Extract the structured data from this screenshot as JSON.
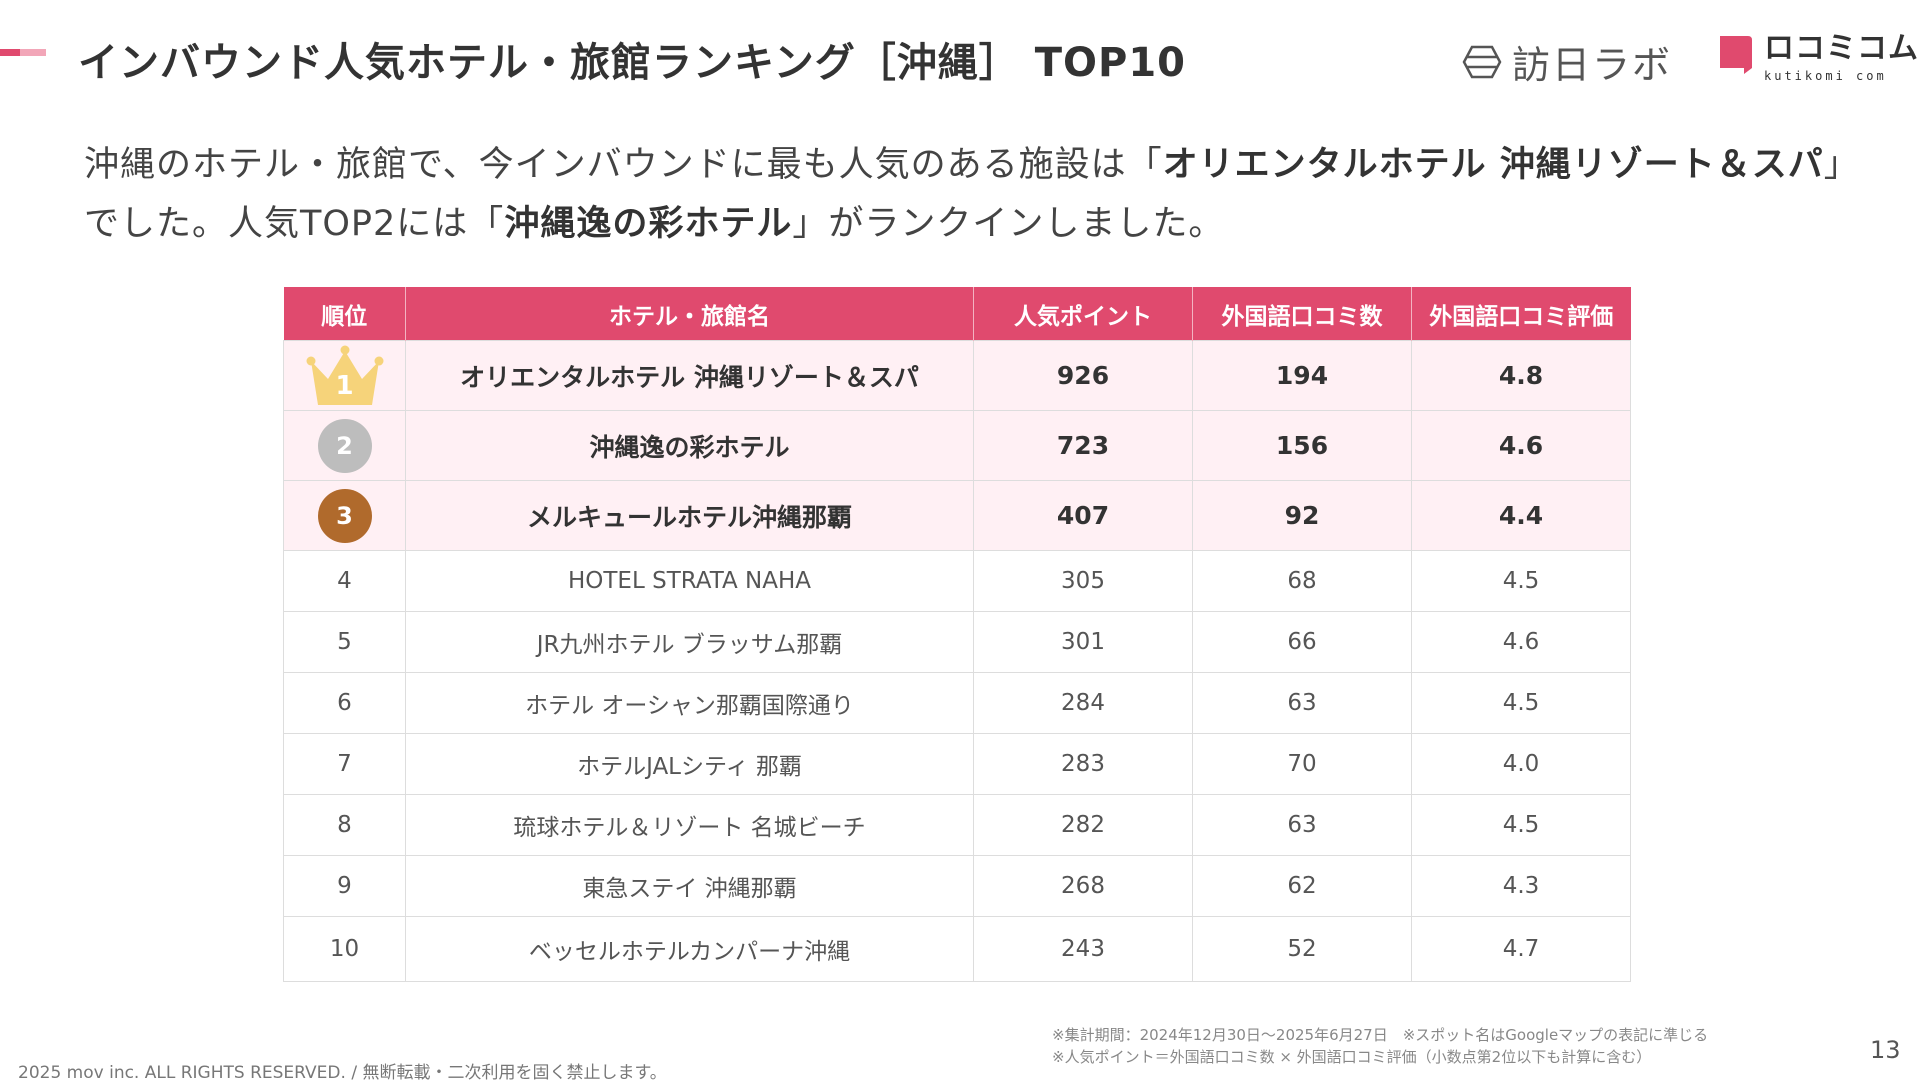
{
  "header": {
    "title": "インバウンド人気ホテル・旅館ランキング［沖縄］ TOP10",
    "logo_houmon": "訪日ラボ",
    "logo_kuchikomi_jp": "ロコミコム",
    "logo_kuchikomi_en": "kutikomi com",
    "accent_colors": [
      "#e04a6e",
      "#f2a6b8"
    ]
  },
  "lead": {
    "part1": "沖縄のホテル・旅館で、今インバウンドに最も人気のある施設は「",
    "bold1": "オリエンタルホテル 沖縄リゾート＆スパ",
    "part2": "」でした。人気TOP2には「",
    "bold2": "沖縄逸の彩ホテル",
    "part3": "」がランクインしました。"
  },
  "table": {
    "header_color": "#e04a6e",
    "columns": [
      "順位",
      "ホテル・旅館名",
      "人気ポイント",
      "外国語口コミ数",
      "外国語口コミ評価"
    ],
    "rows": [
      {
        "rank": "1",
        "name": "オリエンタルホテル 沖縄リゾート＆スパ",
        "points": "926",
        "reviews": "194",
        "rating": "4.8",
        "badge": "crown-gold",
        "color": "#f6d37a"
      },
      {
        "rank": "2",
        "name": "沖縄逸の彩ホテル",
        "points": "723",
        "reviews": "156",
        "rating": "4.6",
        "badge": "medal-silver",
        "color": "#bdbdbd"
      },
      {
        "rank": "3",
        "name": "メルキュールホテル沖縄那覇",
        "points": "407",
        "reviews": "92",
        "rating": "4.4",
        "badge": "medal-bronze",
        "color": "#b06a2c"
      },
      {
        "rank": "4",
        "name": "HOTEL STRATA NAHA",
        "points": "305",
        "reviews": "68",
        "rating": "4.5"
      },
      {
        "rank": "5",
        "name": "JR九州ホテル ブラッサム那覇",
        "points": "301",
        "reviews": "66",
        "rating": "4.6"
      },
      {
        "rank": "6",
        "name": "ホテル オーシャン那覇国際通り",
        "points": "284",
        "reviews": "63",
        "rating": "4.5"
      },
      {
        "rank": "7",
        "name": "ホテルJALシティ 那覇",
        "points": "283",
        "reviews": "70",
        "rating": "4.0"
      },
      {
        "rank": "8",
        "name": "琉球ホテル＆リゾート 名城ビーチ",
        "points": "282",
        "reviews": "63",
        "rating": "4.5"
      },
      {
        "rank": "9",
        "name": "東急ステイ 沖縄那覇",
        "points": "268",
        "reviews": "62",
        "rating": "4.3"
      },
      {
        "rank": "10",
        "name": "ベッセルホテルカンパーナ沖縄",
        "points": "243",
        "reviews": "52",
        "rating": "4.7"
      }
    ]
  },
  "notes": {
    "line1": "※集計期間：2024年12月30日〜2025年6月27日　※スポット名はGoogleマップの表記に準じる",
    "line2": "※人気ポイント＝外国語口コミ数 × 外国語口コミ評価（小数点第2位以下も計算に含む）"
  },
  "footer": {
    "copyright": "2025 mov inc. ALL RIGHTS RESERVED. / 無断転載・二次利用を固く禁止します。",
    "page_number": "13"
  }
}
